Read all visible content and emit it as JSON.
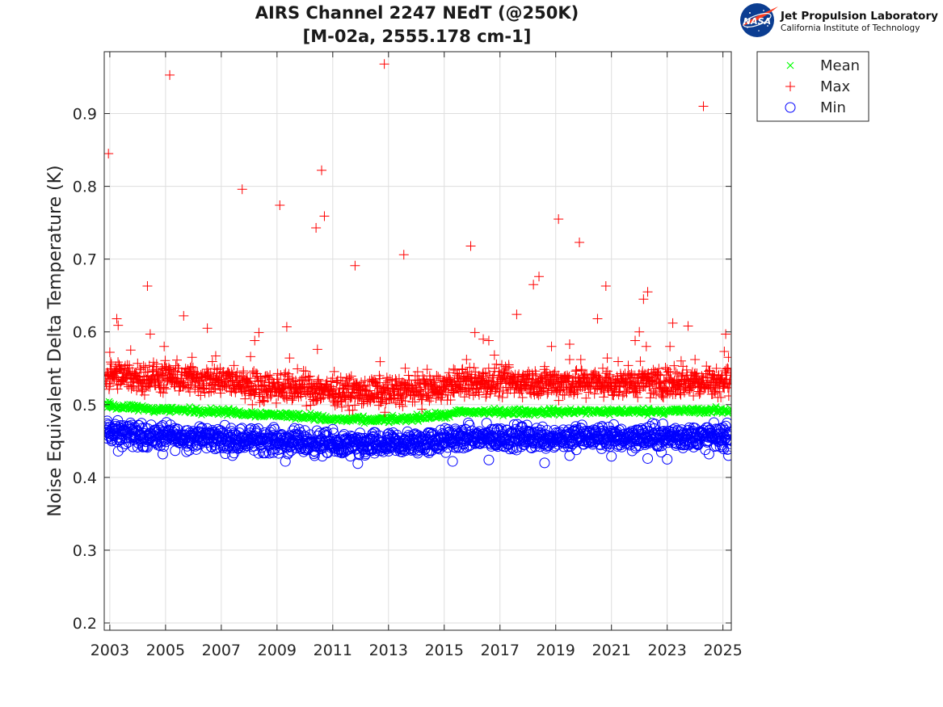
{
  "logo": {
    "badge_text": "NASA",
    "lab_name": "Jet Propulsion Laboratory",
    "institution": "California Institute of Technology"
  },
  "chart_data": {
    "type": "scatter",
    "title": [
      "AIRS Channel 2247 NEdT (@250K)",
      "[M-02a, 2555.178 cm-1]"
    ],
    "xlabel": "",
    "ylabel": "Noise Equivalent Delta Temperature (K)",
    "xlim": [
      2002.8,
      2025.3
    ],
    "ylim": [
      0.19,
      0.985
    ],
    "xticks": [
      2003,
      2005,
      2007,
      2009,
      2011,
      2013,
      2015,
      2017,
      2019,
      2021,
      2023,
      2025
    ],
    "yticks": [
      0.2,
      0.3,
      0.4,
      0.5,
      0.6,
      0.7,
      0.8,
      0.9
    ],
    "grid": true,
    "legend_position": "outside-top-right",
    "series": [
      {
        "name": "Mean",
        "marker": "x",
        "color": "#00ff00",
        "baseline": [
          [
            2002.8,
            0.5
          ],
          [
            2003.5,
            0.496
          ],
          [
            2004.5,
            0.494
          ],
          [
            2006,
            0.492
          ],
          [
            2007,
            0.491
          ],
          [
            2007.8,
            0.488
          ],
          [
            2009,
            0.486
          ],
          [
            2010.2,
            0.484
          ],
          [
            2010.8,
            0.48
          ],
          [
            2012.5,
            0.479
          ],
          [
            2013.5,
            0.48
          ],
          [
            2014.5,
            0.484
          ],
          [
            2015.3,
            0.486
          ],
          [
            2015.5,
            0.49
          ],
          [
            2018,
            0.49
          ],
          [
            2022,
            0.491
          ],
          [
            2025.3,
            0.492
          ]
        ],
        "outliers": [
          [
            2002.85,
            0.503
          ],
          [
            2003.02,
            0.502
          ],
          [
            2003.9,
            0.499
          ],
          [
            2014.3,
            0.488
          ]
        ]
      },
      {
        "name": "Max",
        "marker": "+",
        "color": "#ff0000",
        "baseline": [
          [
            2002.8,
            0.54
          ],
          [
            2004,
            0.538
          ],
          [
            2006,
            0.535
          ],
          [
            2007.8,
            0.53
          ],
          [
            2008,
            0.526
          ],
          [
            2010,
            0.523
          ],
          [
            2012,
            0.516
          ],
          [
            2013,
            0.518
          ],
          [
            2015,
            0.524
          ],
          [
            2015.5,
            0.53
          ],
          [
            2018,
            0.531
          ],
          [
            2021,
            0.53
          ],
          [
            2025.3,
            0.533
          ]
        ],
        "outliers": [
          [
            2002.95,
            0.845
          ],
          [
            2003.0,
            0.572
          ],
          [
            2003.25,
            0.618
          ],
          [
            2003.3,
            0.609
          ],
          [
            2003.75,
            0.575
          ],
          [
            2004.35,
            0.663
          ],
          [
            2004.45,
            0.597
          ],
          [
            2004.95,
            0.58
          ],
          [
            2005.15,
            0.953
          ],
          [
            2005.65,
            0.622
          ],
          [
            2005.95,
            0.565
          ],
          [
            2006.5,
            0.605
          ],
          [
            2006.8,
            0.567
          ],
          [
            2007.75,
            0.796
          ],
          [
            2008.05,
            0.566
          ],
          [
            2008.2,
            0.588
          ],
          [
            2008.35,
            0.599
          ],
          [
            2009.1,
            0.774
          ],
          [
            2009.35,
            0.607
          ],
          [
            2009.45,
            0.564
          ],
          [
            2010.4,
            0.743
          ],
          [
            2010.45,
            0.576
          ],
          [
            2010.6,
            0.822
          ],
          [
            2010.7,
            0.759
          ],
          [
            2011.8,
            0.691
          ],
          [
            2012.7,
            0.559
          ],
          [
            2012.85,
            0.968
          ],
          [
            2013.55,
            0.706
          ],
          [
            2013.6,
            0.55
          ],
          [
            2015.8,
            0.562
          ],
          [
            2015.95,
            0.718
          ],
          [
            2016.1,
            0.599
          ],
          [
            2016.4,
            0.59
          ],
          [
            2016.6,
            0.588
          ],
          [
            2016.8,
            0.568
          ],
          [
            2017.6,
            0.624
          ],
          [
            2018.2,
            0.665
          ],
          [
            2018.4,
            0.676
          ],
          [
            2018.85,
            0.58
          ],
          [
            2019.1,
            0.755
          ],
          [
            2019.5,
            0.583
          ],
          [
            2019.5,
            0.562
          ],
          [
            2019.85,
            0.723
          ],
          [
            2019.9,
            0.562
          ],
          [
            2020.5,
            0.618
          ],
          [
            2020.8,
            0.663
          ],
          [
            2020.85,
            0.564
          ],
          [
            2021.85,
            0.588
          ],
          [
            2022.0,
            0.6
          ],
          [
            2022.15,
            0.645
          ],
          [
            2022.25,
            0.58
          ],
          [
            2022.3,
            0.655
          ],
          [
            2023.1,
            0.58
          ],
          [
            2023.2,
            0.612
          ],
          [
            2023.5,
            0.56
          ],
          [
            2023.75,
            0.608
          ],
          [
            2024.0,
            0.562
          ],
          [
            2024.3,
            0.91
          ],
          [
            2025.05,
            0.573
          ],
          [
            2025.1,
            0.597
          ],
          [
            2025.2,
            0.565
          ]
        ]
      },
      {
        "name": "Min",
        "marker": "o",
        "color": "#0000ff",
        "baseline": [
          [
            2002.8,
            0.462
          ],
          [
            2004,
            0.458
          ],
          [
            2006,
            0.455
          ],
          [
            2008,
            0.452
          ],
          [
            2010,
            0.448
          ],
          [
            2012,
            0.443
          ],
          [
            2013,
            0.445
          ],
          [
            2015,
            0.45
          ],
          [
            2015.5,
            0.454
          ],
          [
            2018,
            0.455
          ],
          [
            2021,
            0.455
          ],
          [
            2025.3,
            0.456
          ]
        ],
        "outliers": [
          [
            2002.9,
            0.474
          ],
          [
            2003.1,
            0.468
          ],
          [
            2003.3,
            0.436
          ],
          [
            2003.9,
            0.469
          ],
          [
            2004.9,
            0.432
          ],
          [
            2007.4,
            0.43
          ],
          [
            2009.3,
            0.422
          ],
          [
            2011.9,
            0.419
          ],
          [
            2015.3,
            0.422
          ],
          [
            2016.6,
            0.424
          ],
          [
            2018.6,
            0.42
          ],
          [
            2019.5,
            0.43
          ],
          [
            2021.0,
            0.429
          ],
          [
            2022.3,
            0.426
          ],
          [
            2023.0,
            0.425
          ],
          [
            2024.5,
            0.432
          ],
          [
            2025.2,
            0.43
          ]
        ]
      }
    ]
  }
}
